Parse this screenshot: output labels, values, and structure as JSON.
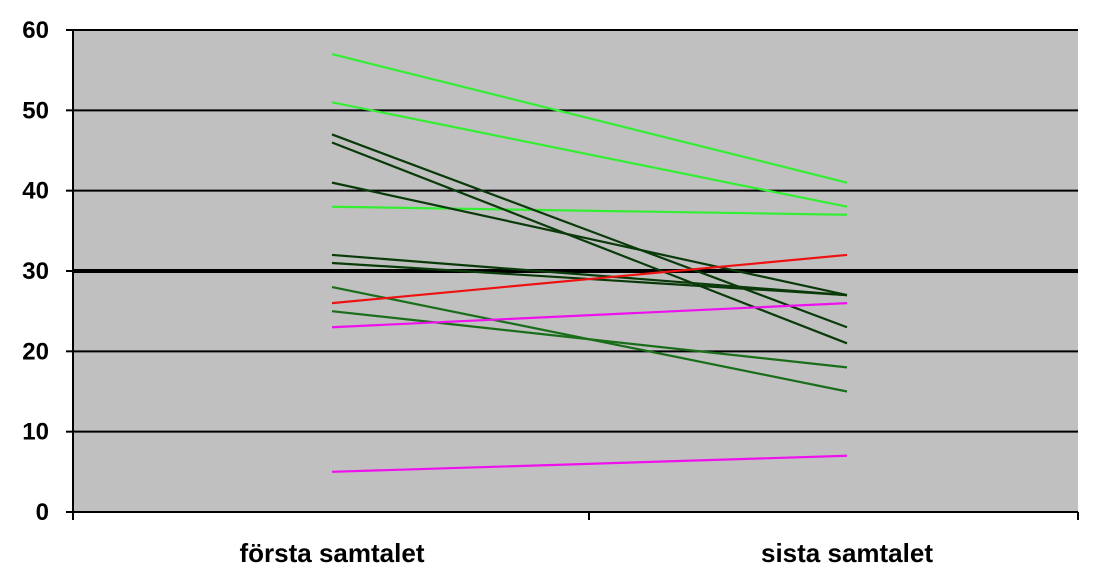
{
  "chart_data": {
    "type": "line",
    "title": "",
    "xlabel": "",
    "ylabel": "",
    "categories": [
      "första samtalet",
      "sista samtalet"
    ],
    "ylim": [
      0,
      60
    ],
    "yticks": [
      0,
      10,
      20,
      30,
      40,
      50,
      60
    ],
    "grid": true,
    "legend": "none",
    "plot_background": "#c0c0c0",
    "reference_line": {
      "value": 30,
      "color": "#000000"
    },
    "series": [
      {
        "values": [
          57,
          41
        ],
        "color": "#33ee33"
      },
      {
        "values": [
          51,
          38
        ],
        "color": "#33ee33"
      },
      {
        "values": [
          38,
          37
        ],
        "color": "#33ee33"
      },
      {
        "values": [
          47,
          23
        ],
        "color": "#0a3a0a"
      },
      {
        "values": [
          46,
          21
        ],
        "color": "#0a3a0a"
      },
      {
        "values": [
          41,
          27
        ],
        "color": "#0a3a0a"
      },
      {
        "values": [
          32,
          27
        ],
        "color": "#0a3a0a"
      },
      {
        "values": [
          31,
          27
        ],
        "color": "#0a3a0a"
      },
      {
        "values": [
          28,
          15
        ],
        "color": "#1a6e1a"
      },
      {
        "values": [
          25,
          18
        ],
        "color": "#1a6e1a"
      },
      {
        "values": [
          26,
          32
        ],
        "color": "#ee1111"
      },
      {
        "values": [
          23,
          26
        ],
        "color": "#ee11ee"
      },
      {
        "values": [
          5,
          7
        ],
        "color": "#ee11ee"
      }
    ]
  }
}
